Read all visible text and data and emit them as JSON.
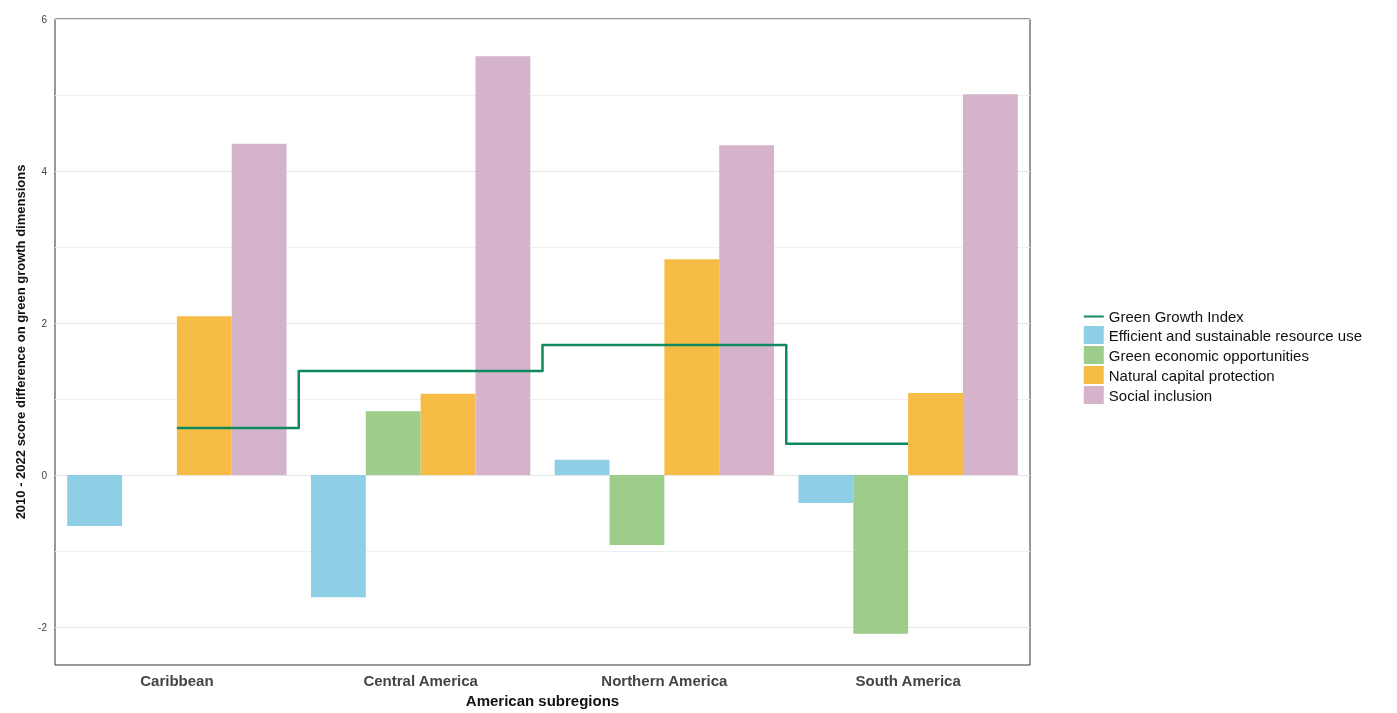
{
  "chart_data": {
    "type": "bar",
    "xlabel": "American subregions",
    "ylabel": "2010 - 2022 score difference on green growth dimensions",
    "categories": [
      "Caribbean",
      "Central America",
      "Northern America",
      "South America"
    ],
    "series": [
      {
        "name": "Green Growth Index",
        "type": "step",
        "color": "#0f8a5f",
        "values": [
          0.62,
          1.37,
          1.71,
          0.41
        ]
      },
      {
        "name": "Efficient and sustainable resource use",
        "color": "#8ecfe6",
        "values": [
          -0.67,
          -1.61,
          0.2,
          -0.37
        ]
      },
      {
        "name": "Green economic opportunities",
        "color": "#9dcd8a",
        "values": [
          null,
          0.84,
          -0.92,
          -2.09
        ]
      },
      {
        "name": "Natural capital protection",
        "color": "#f7bc45",
        "values": [
          2.09,
          1.07,
          2.84,
          1.08
        ]
      },
      {
        "name": "Social inclusion",
        "color": "#d5b4cb",
        "values": [
          4.36,
          5.51,
          4.34,
          5.01
        ]
      }
    ],
    "ylim": [
      -2.5,
      6
    ],
    "yticks": [
      -2,
      0,
      2,
      4,
      6
    ],
    "grid": "y",
    "legend": "right"
  }
}
